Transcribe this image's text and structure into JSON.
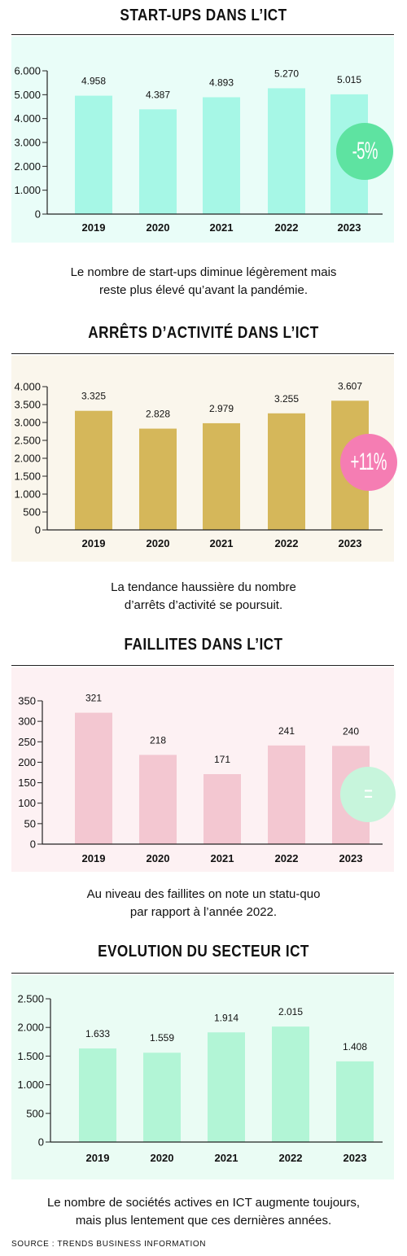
{
  "charts": [
    {
      "title": "START-UPS DANS L’ICT",
      "caption": [
        "Le nombre de start-ups diminue légèrement mais",
        "reste plus élevé qu’avant la pandémie."
      ],
      "badge": "-5%",
      "badge_color": "#5ee3a1",
      "bar_color": "#a6f7e6",
      "panel_bg": "#e9fdf8"
    },
    {
      "title": "ARRÊTS D’ACTIVITÉ DANS L’ICT",
      "caption": [
        "La tendance haussière du nombre",
        "d’arrêts d’activité se poursuit."
      ],
      "badge": "+11%",
      "badge_color": "#f57db3",
      "bar_color": "#d5b75a",
      "panel_bg": "#faf6ec"
    },
    {
      "title": "FAILLITES DANS L’ICT",
      "caption": [
        "Au niveau des faillites on note un statu-quo",
        "par rapport à l’année 2022."
      ],
      "badge": "=",
      "badge_color": "#c7f5dc",
      "bar_color": "#f3c7d1",
      "panel_bg": "#fdf1f3"
    },
    {
      "title": "EVOLUTION DU SECTEUR ICT",
      "caption": [
        "Le nombre de sociétés actives en ICT augmente toujours,",
        "mais plus lentement que ces dernières années."
      ],
      "badge": "",
      "badge_color": "",
      "bar_color": "#b2f5d6",
      "panel_bg": "#eafcf4"
    }
  ],
  "chart_data": [
    {
      "type": "bar",
      "title": "START-UPS DANS L’ICT",
      "categories": [
        "2019",
        "2020",
        "2021",
        "2022",
        "2023"
      ],
      "values": [
        4958,
        4387,
        4893,
        5270,
        5015
      ],
      "value_labels": [
        "4.958",
        "4.387",
        "4.893",
        "5.270",
        "5.015"
      ],
      "yticks": [
        0,
        1000,
        2000,
        3000,
        4000,
        5000,
        6000
      ],
      "ytick_labels": [
        "0",
        "1.000",
        "2.000",
        "3.000",
        "4.000",
        "5.000",
        "6.000"
      ],
      "ylim": [
        0,
        6000
      ]
    },
    {
      "type": "bar",
      "title": "ARRÊTS D’ACTIVITÉ DANS L’ICT",
      "categories": [
        "2019",
        "2020",
        "2021",
        "2022",
        "2023"
      ],
      "values": [
        3325,
        2828,
        2979,
        3255,
        3607
      ],
      "value_labels": [
        "3.325",
        "2.828",
        "2.979",
        "3.255",
        "3.607"
      ],
      "yticks": [
        0,
        500,
        1000,
        1500,
        2000,
        2500,
        3000,
        3500,
        4000
      ],
      "ytick_labels": [
        "0",
        "500",
        "1.000",
        "1.500",
        "2.000",
        "2.500",
        "3.000",
        "3.500",
        "4.000"
      ],
      "ylim": [
        0,
        4000
      ]
    },
    {
      "type": "bar",
      "title": "FAILLITES DANS L’ICT",
      "categories": [
        "2019",
        "2020",
        "2021",
        "2022",
        "2023"
      ],
      "values": [
        321,
        218,
        171,
        241,
        240
      ],
      "value_labels": [
        "321",
        "218",
        "171",
        "241",
        "240"
      ],
      "yticks": [
        0,
        50,
        100,
        150,
        200,
        250,
        300,
        350
      ],
      "ytick_labels": [
        "0",
        "50",
        "100",
        "150",
        "200",
        "250",
        "300",
        "350"
      ],
      "ylim": [
        0,
        350
      ]
    },
    {
      "type": "bar",
      "title": "EVOLUTION DU SECTEUR ICT",
      "categories": [
        "2019",
        "2020",
        "2021",
        "2022",
        "2023"
      ],
      "values": [
        1633,
        1559,
        1914,
        2015,
        1408
      ],
      "value_labels": [
        "1.633",
        "1.559",
        "1.914",
        "2.015",
        "1.408"
      ],
      "yticks": [
        0,
        500,
        1000,
        1500,
        2000,
        2500
      ],
      "ytick_labels": [
        "0",
        "500",
        "1.000",
        "1.500",
        "2.000",
        "2.500"
      ],
      "ylim": [
        0,
        2500
      ]
    }
  ],
  "source": "SOURCE : TRENDS BUSINESS INFORMATION"
}
